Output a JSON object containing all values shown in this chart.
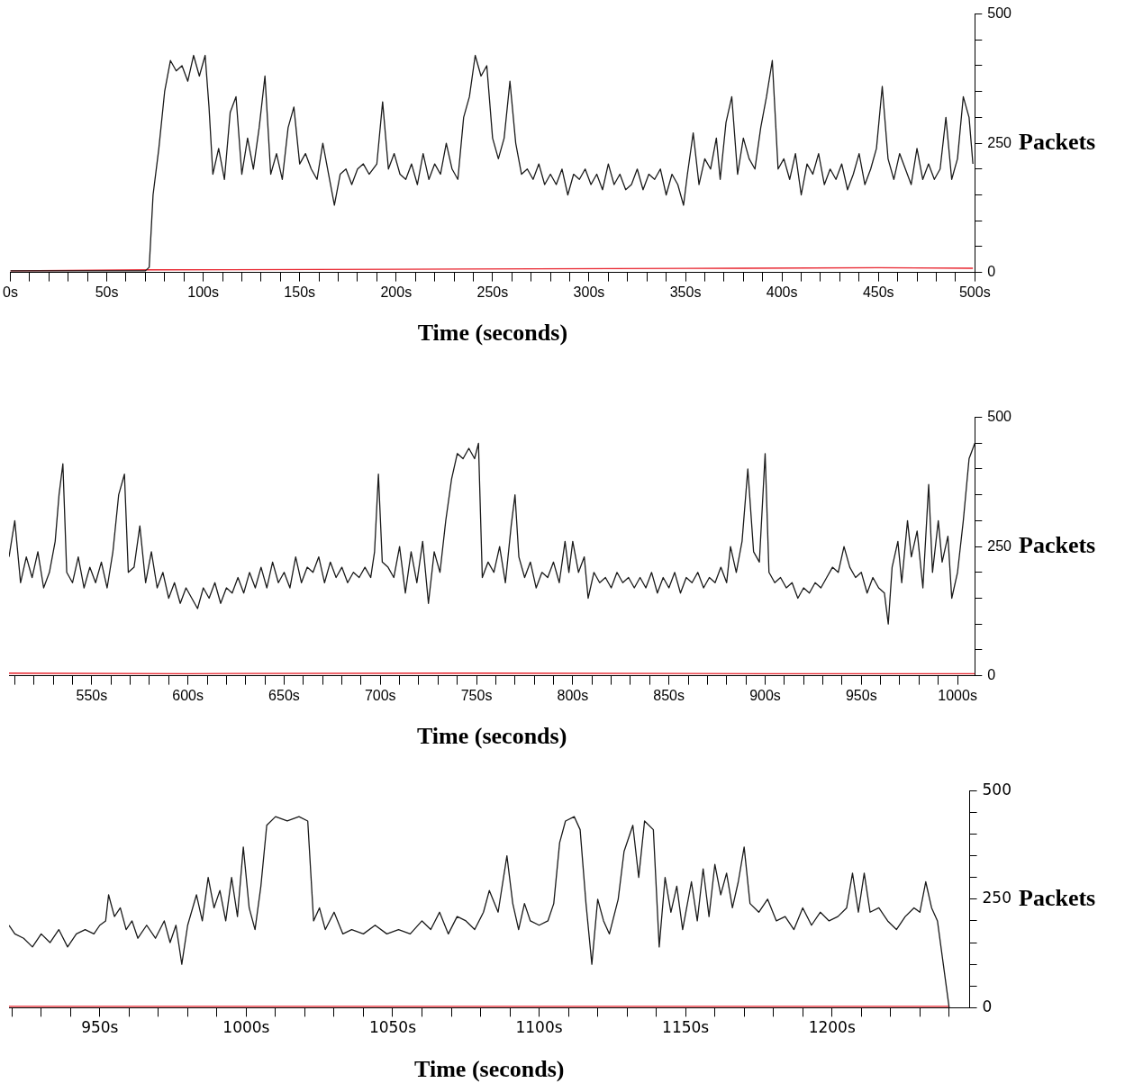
{
  "chart_data": [
    {
      "type": "line",
      "xlabel": "Time (seconds)",
      "ylabel": "Packets",
      "xlim": [
        0,
        500
      ],
      "ylim": [
        0,
        500
      ],
      "grid": false,
      "legend": false,
      "marker": "none",
      "line_style": "solid",
      "xticks": [
        {
          "value": 0,
          "label": "0s"
        },
        {
          "value": 10,
          "label": null
        },
        {
          "value": 20,
          "label": null
        },
        {
          "value": 30,
          "label": null
        },
        {
          "value": 40,
          "label": null
        },
        {
          "value": 50,
          "label": "50s"
        },
        {
          "value": 60,
          "label": null
        },
        {
          "value": 70,
          "label": null
        },
        {
          "value": 80,
          "label": null
        },
        {
          "value": 90,
          "label": null
        },
        {
          "value": 100,
          "label": "100s"
        },
        {
          "value": 110,
          "label": null
        },
        {
          "value": 120,
          "label": null
        },
        {
          "value": 130,
          "label": null
        },
        {
          "value": 140,
          "label": null
        },
        {
          "value": 150,
          "label": "150s"
        },
        {
          "value": 160,
          "label": null
        },
        {
          "value": 170,
          "label": null
        },
        {
          "value": 180,
          "label": null
        },
        {
          "value": 190,
          "label": null
        },
        {
          "value": 200,
          "label": "200s"
        },
        {
          "value": 210,
          "label": null
        },
        {
          "value": 220,
          "label": null
        },
        {
          "value": 230,
          "label": null
        },
        {
          "value": 240,
          "label": null
        },
        {
          "value": 250,
          "label": "250s"
        },
        {
          "value": 260,
          "label": null
        },
        {
          "value": 270,
          "label": null
        },
        {
          "value": 280,
          "label": null
        },
        {
          "value": 290,
          "label": null
        },
        {
          "value": 300,
          "label": "300s"
        },
        {
          "value": 310,
          "label": null
        },
        {
          "value": 320,
          "label": null
        },
        {
          "value": 330,
          "label": null
        },
        {
          "value": 340,
          "label": null
        },
        {
          "value": 350,
          "label": "350s"
        },
        {
          "value": 360,
          "label": null
        },
        {
          "value": 370,
          "label": null
        },
        {
          "value": 380,
          "label": null
        },
        {
          "value": 390,
          "label": null
        },
        {
          "value": 400,
          "label": "400s"
        },
        {
          "value": 410,
          "label": null
        },
        {
          "value": 420,
          "label": null
        },
        {
          "value": 430,
          "label": null
        },
        {
          "value": 440,
          "label": null
        },
        {
          "value": 450,
          "label": "450s"
        },
        {
          "value": 460,
          "label": null
        },
        {
          "value": 470,
          "label": null
        },
        {
          "value": 480,
          "label": null
        },
        {
          "value": 490,
          "label": null
        },
        {
          "value": 500,
          "label": "500s"
        }
      ],
      "yticks": [
        0,
        {
          "value": 50,
          "label": null
        },
        {
          "value": 100,
          "label": null
        },
        {
          "value": 150,
          "label": null
        },
        {
          "value": 200,
          "label": null
        },
        250,
        {
          "value": 300,
          "label": null
        },
        {
          "value": 350,
          "label": null
        },
        {
          "value": 400,
          "label": null
        },
        {
          "value": 450,
          "label": null
        },
        500
      ],
      "series": [
        {
          "color": "#1a1a1a",
          "x": [
            0,
            10,
            70,
            72,
            74,
            77,
            80,
            83,
            86,
            89,
            92,
            95,
            98,
            101,
            103,
            105,
            108,
            111,
            114,
            117,
            120,
            123,
            126,
            129,
            132,
            135,
            138,
            141,
            144,
            147,
            150,
            153,
            156,
            159,
            162,
            165,
            168,
            171,
            174,
            177,
            180,
            183,
            186,
            190,
            193,
            196,
            199,
            202,
            205,
            208,
            211,
            214,
            217,
            220,
            223,
            226,
            229,
            232,
            235,
            238,
            241,
            244,
            247,
            250,
            253,
            256,
            259,
            262,
            265,
            268,
            271,
            274,
            277,
            280,
            283,
            286,
            289,
            292,
            295,
            298,
            301,
            304,
            307,
            310,
            313,
            316,
            319,
            322,
            325,
            328,
            331,
            334,
            337,
            340,
            343,
            346,
            349,
            351,
            354,
            357,
            360,
            363,
            366,
            368,
            371,
            374,
            377,
            380,
            383,
            386,
            389,
            392,
            395,
            398,
            401,
            404,
            407,
            410,
            413,
            416,
            419,
            422,
            425,
            428,
            431,
            434,
            437,
            440,
            443,
            446,
            449,
            452,
            455,
            458,
            461,
            464,
            467,
            470,
            473,
            476,
            479,
            482,
            485,
            488,
            491,
            494,
            497,
            499
          ],
          "values": [
            3,
            3,
            3,
            10,
            150,
            240,
            350,
            410,
            390,
            400,
            370,
            420,
            380,
            420,
            320,
            190,
            240,
            180,
            310,
            340,
            190,
            260,
            200,
            280,
            380,
            190,
            230,
            180,
            280,
            320,
            210,
            230,
            200,
            180,
            250,
            190,
            130,
            190,
            200,
            170,
            200,
            210,
            190,
            210,
            330,
            200,
            230,
            190,
            180,
            210,
            170,
            230,
            180,
            210,
            190,
            250,
            200,
            180,
            300,
            340,
            420,
            380,
            400,
            260,
            220,
            260,
            370,
            250,
            190,
            200,
            180,
            210,
            170,
            190,
            170,
            200,
            150,
            190,
            180,
            200,
            170,
            190,
            160,
            210,
            170,
            190,
            160,
            170,
            200,
            160,
            190,
            180,
            200,
            150,
            190,
            170,
            130,
            190,
            270,
            170,
            220,
            200,
            260,
            180,
            290,
            340,
            190,
            260,
            220,
            200,
            280,
            340,
            410,
            200,
            220,
            180,
            230,
            150,
            210,
            190,
            230,
            170,
            200,
            180,
            210,
            160,
            190,
            230,
            170,
            200,
            240,
            360,
            220,
            180,
            230,
            200,
            170,
            240,
            180,
            210,
            180,
            200,
            300,
            180,
            220,
            340,
            300,
            210
          ]
        },
        {
          "color": "#e8202a",
          "x": [
            0,
            72,
            200,
            380,
            450,
            499
          ],
          "values": [
            3,
            5,
            6,
            8,
            9,
            8
          ]
        }
      ]
    },
    {
      "type": "line",
      "xlabel": "Time (seconds)",
      "ylabel": "Packets",
      "xlim": [
        507,
        1009
      ],
      "ylim": [
        0,
        500
      ],
      "grid": false,
      "legend": false,
      "marker": "none",
      "line_style": "solid",
      "xticks": [
        {
          "value": 510,
          "label": null
        },
        {
          "value": 520,
          "label": null
        },
        {
          "value": 530,
          "label": null
        },
        {
          "value": 540,
          "label": null
        },
        {
          "value": 550,
          "label": "550s"
        },
        {
          "value": 560,
          "label": null
        },
        {
          "value": 570,
          "label": null
        },
        {
          "value": 580,
          "label": null
        },
        {
          "value": 590,
          "label": null
        },
        {
          "value": 600,
          "label": "600s"
        },
        {
          "value": 610,
          "label": null
        },
        {
          "value": 620,
          "label": null
        },
        {
          "value": 630,
          "label": null
        },
        {
          "value": 640,
          "label": null
        },
        {
          "value": 650,
          "label": "650s"
        },
        {
          "value": 660,
          "label": null
        },
        {
          "value": 670,
          "label": null
        },
        {
          "value": 680,
          "label": null
        },
        {
          "value": 690,
          "label": null
        },
        {
          "value": 700,
          "label": "700s"
        },
        {
          "value": 710,
          "label": null
        },
        {
          "value": 720,
          "label": null
        },
        {
          "value": 730,
          "label": null
        },
        {
          "value": 740,
          "label": null
        },
        {
          "value": 750,
          "label": "750s"
        },
        {
          "value": 760,
          "label": null
        },
        {
          "value": 770,
          "label": null
        },
        {
          "value": 780,
          "label": null
        },
        {
          "value": 790,
          "label": null
        },
        {
          "value": 800,
          "label": "800s"
        },
        {
          "value": 810,
          "label": null
        },
        {
          "value": 820,
          "label": null
        },
        {
          "value": 830,
          "label": null
        },
        {
          "value": 840,
          "label": null
        },
        {
          "value": 850,
          "label": "850s"
        },
        {
          "value": 860,
          "label": null
        },
        {
          "value": 870,
          "label": null
        },
        {
          "value": 880,
          "label": null
        },
        {
          "value": 890,
          "label": null
        },
        {
          "value": 900,
          "label": "900s"
        },
        {
          "value": 910,
          "label": null
        },
        {
          "value": 920,
          "label": null
        },
        {
          "value": 930,
          "label": null
        },
        {
          "value": 940,
          "label": null
        },
        {
          "value": 950,
          "label": "950s"
        },
        {
          "value": 960,
          "label": null
        },
        {
          "value": 970,
          "label": null
        },
        {
          "value": 980,
          "label": null
        },
        {
          "value": 990,
          "label": null
        },
        {
          "value": 1000,
          "label": "1000s"
        }
      ],
      "yticks": [
        0,
        {
          "value": 50,
          "label": null
        },
        {
          "value": 100,
          "label": null
        },
        {
          "value": 150,
          "label": null
        },
        {
          "value": 200,
          "label": null
        },
        250,
        {
          "value": 300,
          "label": null
        },
        {
          "value": 350,
          "label": null
        },
        {
          "value": 400,
          "label": null
        },
        {
          "value": 450,
          "label": null
        },
        500
      ],
      "series": [
        {
          "color": "#1a1a1a",
          "x": [
            507,
            510,
            513,
            516,
            519,
            522,
            525,
            528,
            531,
            533,
            535,
            537,
            540,
            543,
            546,
            549,
            552,
            555,
            558,
            561,
            564,
            567,
            569,
            572,
            575,
            578,
            581,
            584,
            587,
            590,
            593,
            596,
            599,
            602,
            605,
            608,
            611,
            614,
            617,
            620,
            623,
            626,
            629,
            632,
            635,
            638,
            641,
            644,
            647,
            650,
            653,
            656,
            659,
            662,
            665,
            668,
            671,
            674,
            677,
            680,
            683,
            686,
            689,
            692,
            695,
            697,
            699,
            701,
            704,
            707,
            710,
            713,
            716,
            719,
            722,
            725,
            728,
            731,
            734,
            737,
            740,
            743,
            746,
            749,
            751,
            753,
            756,
            759,
            762,
            765,
            768,
            770,
            772,
            775,
            778,
            781,
            784,
            787,
            790,
            793,
            796,
            798,
            800,
            803,
            806,
            808,
            811,
            814,
            817,
            820,
            823,
            826,
            829,
            832,
            835,
            838,
            841,
            844,
            847,
            850,
            853,
            856,
            859,
            862,
            865,
            868,
            871,
            874,
            877,
            880,
            882,
            885,
            888,
            891,
            894,
            897,
            900,
            902,
            905,
            908,
            911,
            914,
            917,
            920,
            923,
            926,
            929,
            932,
            935,
            938,
            941,
            944,
            947,
            950,
            953,
            956,
            959,
            962,
            964,
            966,
            969,
            971,
            974,
            976,
            979,
            982,
            985,
            987,
            990,
            992,
            995,
            997,
            1000,
            1003,
            1006,
            1009
          ],
          "values": [
            230,
            300,
            180,
            230,
            190,
            240,
            170,
            200,
            260,
            350,
            410,
            200,
            180,
            230,
            170,
            210,
            180,
            220,
            170,
            240,
            350,
            390,
            200,
            210,
            290,
            180,
            240,
            170,
            200,
            150,
            180,
            140,
            170,
            150,
            130,
            170,
            150,
            180,
            140,
            170,
            160,
            190,
            160,
            200,
            170,
            210,
            170,
            220,
            180,
            200,
            170,
            230,
            180,
            210,
            200,
            230,
            180,
            220,
            190,
            210,
            180,
            200,
            190,
            210,
            190,
            240,
            390,
            220,
            210,
            190,
            250,
            160,
            240,
            180,
            260,
            140,
            240,
            200,
            300,
            380,
            430,
            420,
            440,
            420,
            450,
            190,
            220,
            200,
            250,
            180,
            290,
            350,
            230,
            190,
            220,
            170,
            200,
            190,
            220,
            180,
            260,
            200,
            260,
            200,
            230,
            150,
            200,
            180,
            190,
            170,
            200,
            180,
            190,
            170,
            190,
            170,
            200,
            160,
            190,
            170,
            200,
            160,
            190,
            180,
            200,
            170,
            190,
            180,
            210,
            180,
            250,
            200,
            260,
            400,
            240,
            220,
            430,
            200,
            180,
            190,
            170,
            180,
            150,
            170,
            160,
            180,
            170,
            190,
            210,
            200,
            250,
            210,
            190,
            200,
            160,
            190,
            170,
            160,
            100,
            210,
            260,
            180,
            300,
            230,
            280,
            170,
            370,
            200,
            300,
            220,
            270,
            150,
            200,
            300,
            420,
            450
          ]
        },
        {
          "color": "#e8202a",
          "x": [
            507,
            600,
            750,
            900,
            1009
          ],
          "values": [
            5,
            4,
            5,
            4,
            4
          ]
        }
      ]
    },
    {
      "type": "line",
      "xlabel": "Time (seconds)",
      "ylabel": "Packets",
      "xlim": [
        919,
        1247
      ],
      "ylim": [
        0,
        500
      ],
      "grid": false,
      "legend": false,
      "marker": "none",
      "line_style": "solid",
      "xticks": [
        {
          "value": 920,
          "label": null
        },
        {
          "value": 930,
          "label": null
        },
        {
          "value": 940,
          "label": null
        },
        {
          "value": 950,
          "label": "950s"
        },
        {
          "value": 960,
          "label": null
        },
        {
          "value": 970,
          "label": null
        },
        {
          "value": 980,
          "label": null
        },
        {
          "value": 990,
          "label": null
        },
        {
          "value": 1000,
          "label": "1000s"
        },
        {
          "value": 1010,
          "label": null
        },
        {
          "value": 1020,
          "label": null
        },
        {
          "value": 1030,
          "label": null
        },
        {
          "value": 1040,
          "label": null
        },
        {
          "value": 1050,
          "label": "1050s"
        },
        {
          "value": 1060,
          "label": null
        },
        {
          "value": 1070,
          "label": null
        },
        {
          "value": 1080,
          "label": null
        },
        {
          "value": 1090,
          "label": null
        },
        {
          "value": 1100,
          "label": "1100s"
        },
        {
          "value": 1110,
          "label": null
        },
        {
          "value": 1120,
          "label": null
        },
        {
          "value": 1130,
          "label": null
        },
        {
          "value": 1140,
          "label": null
        },
        {
          "value": 1150,
          "label": "1150s"
        },
        {
          "value": 1160,
          "label": null
        },
        {
          "value": 1170,
          "label": null
        },
        {
          "value": 1180,
          "label": null
        },
        {
          "value": 1190,
          "label": null
        },
        {
          "value": 1200,
          "label": "1200s"
        },
        {
          "value": 1210,
          "label": null
        },
        {
          "value": 1220,
          "label": null
        },
        {
          "value": 1230,
          "label": null
        },
        {
          "value": 1240,
          "label": null
        }
      ],
      "yticks": [
        0,
        {
          "value": 50,
          "label": null
        },
        {
          "value": 100,
          "label": null
        },
        {
          "value": 150,
          "label": null
        },
        {
          "value": 200,
          "label": null
        },
        250,
        {
          "value": 300,
          "label": null
        },
        {
          "value": 350,
          "label": null
        },
        {
          "value": 400,
          "label": null
        },
        {
          "value": 450,
          "label": null
        },
        500
      ],
      "series": [
        {
          "color": "#1a1a1a",
          "x": [
            919,
            921,
            924,
            927,
            930,
            933,
            936,
            939,
            942,
            945,
            948,
            950,
            952,
            953,
            955,
            957,
            959,
            961,
            963,
            966,
            969,
            972,
            974,
            976,
            978,
            980,
            983,
            985,
            987,
            989,
            991,
            993,
            995,
            997,
            999,
            1001,
            1003,
            1005,
            1007,
            1010,
            1014,
            1018,
            1021,
            1023,
            1025,
            1027,
            1030,
            1033,
            1036,
            1040,
            1044,
            1048,
            1052,
            1056,
            1060,
            1063,
            1066,
            1069,
            1072,
            1075,
            1078,
            1081,
            1083,
            1086,
            1089,
            1091,
            1093,
            1095,
            1097,
            1100,
            1103,
            1105,
            1107,
            1109,
            1112,
            1114,
            1116,
            1118,
            1120,
            1122,
            1124,
            1127,
            1129,
            1132,
            1134,
            1136,
            1139,
            1141,
            1143,
            1145,
            1147,
            1149,
            1152,
            1154,
            1156,
            1158,
            1160,
            1162,
            1164,
            1166,
            1168,
            1170,
            1172,
            1175,
            1178,
            1181,
            1184,
            1187,
            1190,
            1193,
            1196,
            1199,
            1202,
            1205,
            1207,
            1209,
            1211,
            1213,
            1216,
            1219,
            1222,
            1225,
            1228,
            1230,
            1232,
            1234,
            1236,
            1238,
            1240
          ],
          "values": [
            190,
            170,
            160,
            140,
            170,
            150,
            180,
            140,
            170,
            180,
            170,
            190,
            200,
            260,
            210,
            230,
            180,
            200,
            160,
            190,
            160,
            200,
            150,
            190,
            100,
            190,
            260,
            200,
            300,
            230,
            270,
            200,
            300,
            210,
            370,
            230,
            180,
            280,
            420,
            440,
            430,
            440,
            430,
            200,
            230,
            180,
            220,
            170,
            180,
            170,
            190,
            170,
            180,
            170,
            200,
            180,
            220,
            170,
            210,
            200,
            180,
            220,
            270,
            220,
            350,
            240,
            180,
            240,
            200,
            190,
            200,
            240,
            380,
            430,
            440,
            410,
            240,
            100,
            250,
            200,
            170,
            250,
            360,
            420,
            300,
            430,
            410,
            140,
            300,
            220,
            280,
            180,
            290,
            200,
            320,
            210,
            330,
            260,
            310,
            230,
            290,
            370,
            240,
            220,
            250,
            200,
            210,
            180,
            230,
            190,
            220,
            200,
            210,
            230,
            310,
            220,
            310,
            220,
            230,
            200,
            180,
            210,
            230,
            220,
            290,
            230,
            200,
            100,
            0
          ]
        },
        {
          "color": "#e8202a",
          "x": [
            919,
            1000,
            1100,
            1200,
            1240
          ],
          "values": [
            3,
            3,
            3,
            3,
            3
          ]
        }
      ]
    }
  ]
}
